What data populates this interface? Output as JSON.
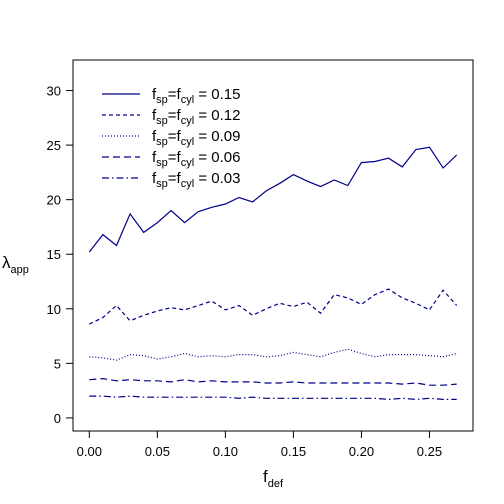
{
  "chart_data": {
    "type": "line",
    "xlabel": {
      "main": "f",
      "sub": "def"
    },
    "ylabel": {
      "main": "λ",
      "sub": "app"
    },
    "xlim": [
      -0.012,
      0.282
    ],
    "ylim": [
      -1.2,
      32.8
    ],
    "x_ticks": [
      0.0,
      0.05,
      0.1,
      0.15,
      0.2,
      0.25
    ],
    "x_tick_labels": [
      "0.00",
      "0.05",
      "0.10",
      "0.15",
      "0.20",
      "0.25"
    ],
    "y_ticks": [
      0,
      5,
      10,
      15,
      20,
      25,
      30
    ],
    "y_tick_labels": [
      "0",
      "5",
      "10",
      "15",
      "20",
      "25",
      "30"
    ],
    "grid": false,
    "legend_position": "top-left",
    "line_color": "#00008B",
    "x": [
      0.0,
      0.01,
      0.02,
      0.03,
      0.04,
      0.05,
      0.06,
      0.07,
      0.08,
      0.09,
      0.1,
      0.11,
      0.12,
      0.13,
      0.14,
      0.15,
      0.16,
      0.17,
      0.18,
      0.19,
      0.2,
      0.21,
      0.22,
      0.23,
      0.24,
      0.25,
      0.26,
      0.27
    ],
    "series": [
      {
        "label": {
          "a": "f",
          "sa": "sp",
          "b": "=f",
          "sb": "cyl",
          "c": " = 0.15"
        },
        "dash": "solid",
        "values": [
          15.2,
          16.8,
          15.8,
          18.7,
          17.0,
          17.9,
          19.0,
          17.9,
          18.9,
          19.3,
          19.6,
          20.2,
          19.8,
          20.8,
          21.5,
          22.3,
          21.7,
          21.2,
          21.8,
          21.3,
          23.4,
          23.5,
          23.8,
          23.0,
          24.6,
          24.8,
          22.9,
          24.1
        ]
      },
      {
        "label": {
          "a": "f",
          "sa": "sp",
          "b": "=f",
          "sb": "cyl",
          "c": " = 0.12"
        },
        "dash": "4,3",
        "values": [
          8.6,
          9.2,
          10.3,
          8.9,
          9.4,
          9.8,
          10.1,
          9.9,
          10.3,
          10.7,
          9.9,
          10.3,
          9.4,
          10.0,
          10.5,
          10.2,
          10.6,
          9.6,
          11.3,
          11.0,
          10.4,
          11.3,
          11.8,
          11.0,
          10.5,
          9.9,
          11.7,
          10.3
        ]
      },
      {
        "label": {
          "a": "f",
          "sa": "sp",
          "b": "=f",
          "sb": "cyl",
          "c": " = 0.09"
        },
        "dash": "1,2",
        "values": [
          5.6,
          5.5,
          5.3,
          5.8,
          5.7,
          5.4,
          5.6,
          5.9,
          5.6,
          5.7,
          5.6,
          5.8,
          5.8,
          5.6,
          5.7,
          6.0,
          5.8,
          5.6,
          6.0,
          6.3,
          5.9,
          5.6,
          5.8,
          5.8,
          5.8,
          5.7,
          5.6,
          5.9
        ]
      },
      {
        "label": {
          "a": "f",
          "sa": "sp",
          "b": "=f",
          "sb": "cyl",
          "c": " = 0.06"
        },
        "dash": "7,4",
        "values": [
          3.5,
          3.6,
          3.4,
          3.5,
          3.4,
          3.4,
          3.3,
          3.5,
          3.3,
          3.4,
          3.3,
          3.3,
          3.3,
          3.2,
          3.2,
          3.3,
          3.2,
          3.2,
          3.2,
          3.2,
          3.2,
          3.2,
          3.2,
          3.1,
          3.2,
          3.0,
          3.0,
          3.1
        ]
      },
      {
        "label": {
          "a": "f",
          "sa": "sp",
          "b": "=f",
          "sb": "cyl",
          "c": " = 0.03"
        },
        "dash": "7,3,1.5,3",
        "values": [
          2.0,
          2.0,
          1.9,
          2.0,
          1.9,
          1.9,
          1.9,
          1.9,
          1.9,
          1.9,
          1.9,
          1.8,
          1.9,
          1.8,
          1.8,
          1.8,
          1.8,
          1.8,
          1.8,
          1.8,
          1.8,
          1.8,
          1.7,
          1.8,
          1.7,
          1.8,
          1.7,
          1.7
        ]
      }
    ]
  }
}
